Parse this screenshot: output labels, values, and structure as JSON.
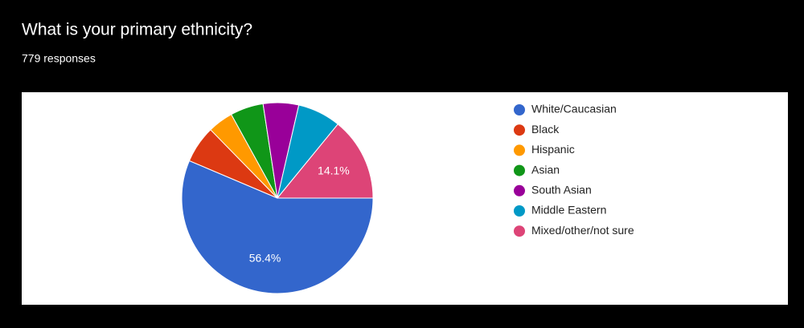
{
  "chart_data": {
    "type": "pie",
    "title": "What is your primary ethnicity?",
    "subtitle": "779 responses",
    "categories": [
      "White/Caucasian",
      "Black",
      "Hispanic",
      "Asian",
      "South Asian",
      "Middle Eastern",
      "Mixed/other/not sure"
    ],
    "values": [
      56.4,
      6.3,
      4.3,
      5.6,
      6.0,
      7.3,
      14.1
    ],
    "value_labels": [
      "56.4%",
      null,
      null,
      null,
      null,
      null,
      "14.1%"
    ],
    "colors": [
      "#3366cc",
      "#dc3912",
      "#ff9900",
      "#109618",
      "#990099",
      "#0099c6",
      "#dd4477"
    ],
    "legend": "right"
  }
}
